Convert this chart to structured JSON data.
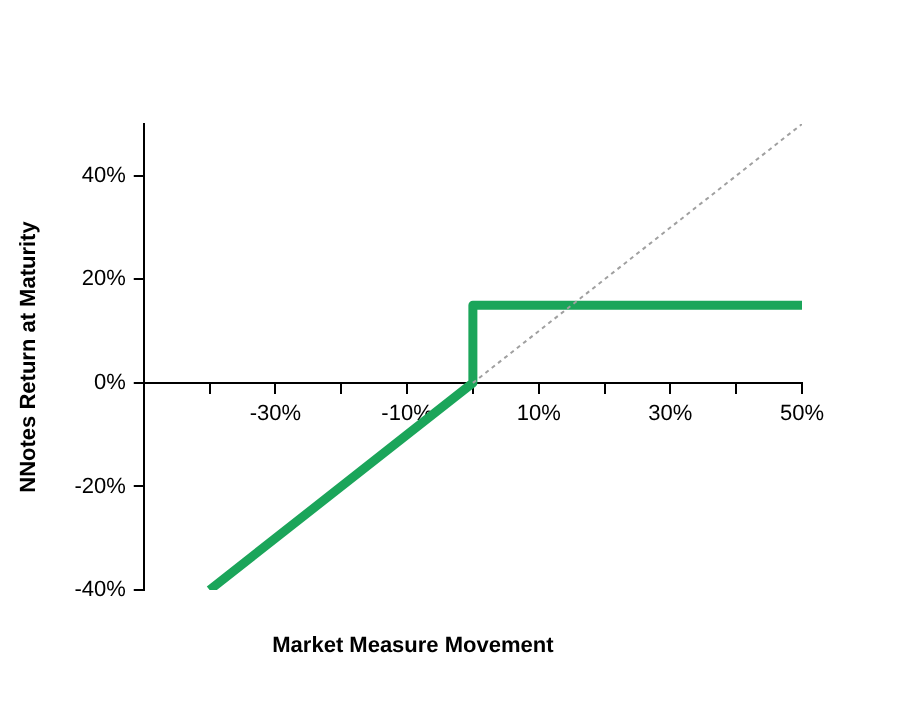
{
  "chart_data": {
    "type": "line",
    "xlabel": "Market Measure Movement",
    "ylabel": "NNotes Return at Maturity",
    "xlim": [
      -50,
      50
    ],
    "ylim": [
      -40,
      50
    ],
    "xticks": [
      {
        "value": -40,
        "label": null
      },
      {
        "value": -30,
        "label": "-30%"
      },
      {
        "value": -20,
        "label": null
      },
      {
        "value": -10,
        "label": "-10%"
      },
      {
        "value": 0,
        "label": null
      },
      {
        "value": 10,
        "label": "10%"
      },
      {
        "value": 20,
        "label": null
      },
      {
        "value": 30,
        "label": "30%"
      },
      {
        "value": 40,
        "label": null
      },
      {
        "value": 50,
        "label": "50%"
      }
    ],
    "yticks": [
      {
        "value": -40,
        "label": "-40%"
      },
      {
        "value": -20,
        "label": "-20%"
      },
      {
        "value": 0,
        "label": "0%"
      },
      {
        "value": 20,
        "label": "20%"
      },
      {
        "value": 40,
        "label": "40%"
      }
    ],
    "series": [
      {
        "x": [
          -40,
          0,
          0,
          50
        ],
        "values": [
          -40,
          0,
          15,
          15
        ],
        "color": "#1ba55a",
        "line_style": "solid"
      },
      {
        "x": [
          0,
          50
        ],
        "values": [
          0,
          50
        ],
        "color": "#a0a0a0",
        "line_style": "dotted"
      }
    ],
    "grid": false,
    "legend": false,
    "marker": "none"
  }
}
